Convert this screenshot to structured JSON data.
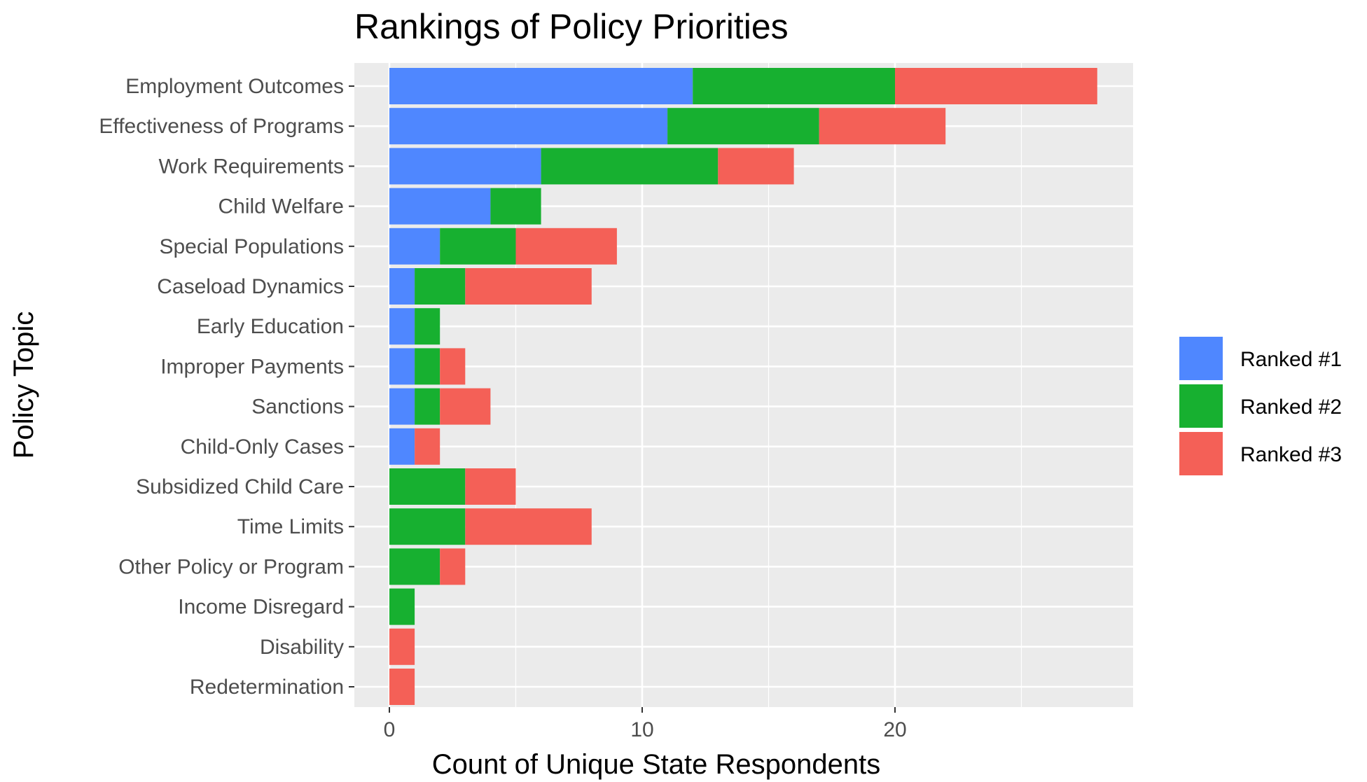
{
  "chart_data": {
    "type": "bar",
    "orientation": "horizontal",
    "stacked": true,
    "title": "Rankings of Policy Priorities",
    "xlabel": "Count of Unique State Respondents",
    "ylabel": "Policy Topic",
    "xlim": [
      0,
      29
    ],
    "x_ticks": [
      0,
      10,
      20
    ],
    "grid": true,
    "legend_position": "right",
    "categories": [
      "Employment Outcomes",
      "Effectiveness of Programs",
      "Work Requirements",
      "Child Welfare",
      "Special Populations",
      "Caseload Dynamics",
      "Early Education",
      "Improper Payments",
      "Sanctions",
      "Child-Only Cases",
      "Subsidized Child Care",
      "Time Limits",
      "Other Policy or Program",
      "Income Disregard",
      "Disability",
      "Redetermination"
    ],
    "series": [
      {
        "name": "Ranked #1",
        "color": "#4f87ff",
        "values": [
          12,
          11,
          6,
          4,
          2,
          1,
          1,
          1,
          1,
          1,
          0,
          0,
          0,
          0,
          0,
          0
        ]
      },
      {
        "name": "Ranked #2",
        "color": "#17b030",
        "values": [
          8,
          6,
          7,
          2,
          3,
          2,
          1,
          1,
          1,
          0,
          3,
          3,
          2,
          1,
          0,
          0
        ]
      },
      {
        "name": "Ranked #3",
        "color": "#f46057",
        "values": [
          8,
          5,
          3,
          0,
          4,
          5,
          0,
          1,
          2,
          1,
          2,
          5,
          1,
          0,
          1,
          1
        ]
      }
    ]
  }
}
